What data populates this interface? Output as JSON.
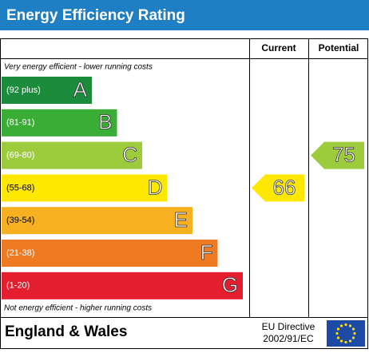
{
  "header": {
    "title": "Energy Efficiency Rating"
  },
  "columns": {
    "current": "Current",
    "potential": "Potential"
  },
  "top_note": "Very energy efficient - lower running costs",
  "bottom_note": "Not energy efficient - higher running costs",
  "bands": [
    {
      "range": "(92 plus)",
      "letter": "A",
      "color": "#1a8c3c"
    },
    {
      "range": "(81-91)",
      "letter": "B",
      "color": "#3aad36"
    },
    {
      "range": "(69-80)",
      "letter": "C",
      "color": "#9ccc3c"
    },
    {
      "range": "(55-68)",
      "letter": "D",
      "color": "#ffe800"
    },
    {
      "range": "(39-54)",
      "letter": "E",
      "color": "#f7b020"
    },
    {
      "range": "(21-38)",
      "letter": "F",
      "color": "#ef7a22"
    },
    {
      "range": "(1-20)",
      "letter": "G",
      "color": "#e41e2e"
    }
  ],
  "current": 66,
  "potential": 75,
  "footer": {
    "region": "England & Wales",
    "directive_line1": "EU Directive",
    "directive_line2": "2002/91/EC"
  }
}
